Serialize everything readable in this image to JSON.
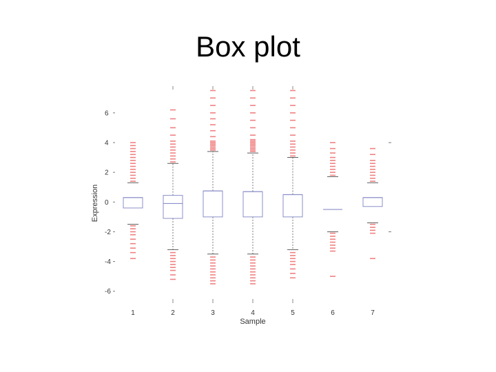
{
  "title": "Box plot",
  "chart_data": {
    "type": "box",
    "xlabel": "Sample",
    "ylabel": "Expression",
    "ylim": [
      -6.8,
      7.8
    ],
    "yticks": [
      6,
      4,
      2,
      0,
      -2,
      -4,
      -6
    ],
    "ytick_labels": [
      "6",
      "4",
      "2",
      "0",
      "-2",
      "-4",
      "-6"
    ],
    "categories": [
      "1",
      "2",
      "3",
      "4",
      "5",
      "6",
      "7"
    ],
    "box_color": "#8a8fc8",
    "outlier_color": "#f08080",
    "boxes": [
      {
        "x": "1",
        "q1": -0.4,
        "median": 0.3,
        "q3": 0.3,
        "whisker_low": -1.5,
        "whisker_high": 1.3,
        "outliers_high": [
          1.4,
          1.6,
          1.8,
          2.0,
          2.2,
          2.4,
          2.6,
          2.8,
          3.0,
          3.2,
          3.4,
          3.6,
          3.8,
          4.0
        ],
        "outliers_low": [
          -1.6,
          -1.8,
          -2.0,
          -2.2,
          -2.5,
          -2.8,
          -3.1,
          -3.4,
          -3.8
        ]
      },
      {
        "x": "2",
        "q1": -1.1,
        "median": -0.1,
        "q3": 0.45,
        "whisker_low": -3.2,
        "whisker_high": 2.6,
        "outliers_high": [
          2.7,
          2.9,
          3.1,
          3.3,
          3.5,
          3.7,
          3.9,
          4.1,
          4.5,
          5.0,
          5.6,
          6.2
        ],
        "outliers_low": [
          -3.4,
          -3.6,
          -3.8,
          -4.0,
          -4.2,
          -4.4,
          -4.6,
          -4.9,
          -5.2
        ]
      },
      {
        "x": "3",
        "q1": -1.0,
        "median": 0.75,
        "q3": 0.75,
        "whisker_low": -3.5,
        "whisker_high": 3.4,
        "outliers_high": [
          3.5,
          3.6,
          3.7,
          3.8,
          3.9,
          4.0,
          4.1,
          4.4,
          4.8,
          5.2,
          5.6,
          6.0,
          6.5,
          7.0,
          7.5
        ],
        "outliers_low": [
          -3.7,
          -3.9,
          -4.1,
          -4.3,
          -4.5,
          -4.7,
          -4.9,
          -5.1,
          -5.3,
          -5.5
        ]
      },
      {
        "x": "4",
        "q1": -1.0,
        "median": 0.7,
        "q3": 0.7,
        "whisker_low": -3.5,
        "whisker_high": 3.3,
        "outliers_high": [
          3.4,
          3.5,
          3.6,
          3.7,
          3.8,
          3.9,
          4.0,
          4.1,
          4.2,
          4.5,
          5.0,
          5.5,
          6.0,
          6.5,
          7.0,
          7.5
        ],
        "outliers_low": [
          -3.7,
          -3.9,
          -4.1,
          -4.3,
          -4.5,
          -4.7,
          -4.9,
          -5.1,
          -5.3,
          -5.5
        ]
      },
      {
        "x": "5",
        "q1": -1.0,
        "median": 0.5,
        "q3": 0.5,
        "whisker_low": -3.2,
        "whisker_high": 3.0,
        "outliers_high": [
          3.1,
          3.3,
          3.5,
          3.7,
          3.9,
          4.1,
          4.5,
          5.0,
          5.5,
          6.0,
          6.5,
          7.0,
          7.5
        ],
        "outliers_low": [
          -3.4,
          -3.6,
          -3.8,
          -4.0,
          -4.2,
          -4.5,
          -4.8,
          -5.1
        ]
      },
      {
        "x": "6",
        "q1": -0.5,
        "median": -0.5,
        "q3": -0.5,
        "whisker_low": -2.0,
        "whisker_high": 1.7,
        "outliers_high": [
          1.8,
          2.0,
          2.2,
          2.4,
          2.6,
          2.8,
          3.0,
          3.3,
          3.6,
          4.0
        ],
        "outliers_low": [
          -2.1,
          -2.3,
          -2.5,
          -2.7,
          -2.9,
          -3.1,
          -3.3,
          -5.0
        ]
      },
      {
        "x": "7",
        "q1": -0.3,
        "median": 0.3,
        "q3": 0.3,
        "whisker_low": -1.4,
        "whisker_high": 1.3,
        "outliers_high": [
          1.4,
          1.6,
          1.8,
          2.0,
          2.2,
          2.4,
          2.6,
          2.8,
          3.2,
          3.6
        ],
        "outliers_low": [
          -1.5,
          -1.7,
          -1.9,
          -2.1,
          -3.8
        ]
      }
    ]
  }
}
